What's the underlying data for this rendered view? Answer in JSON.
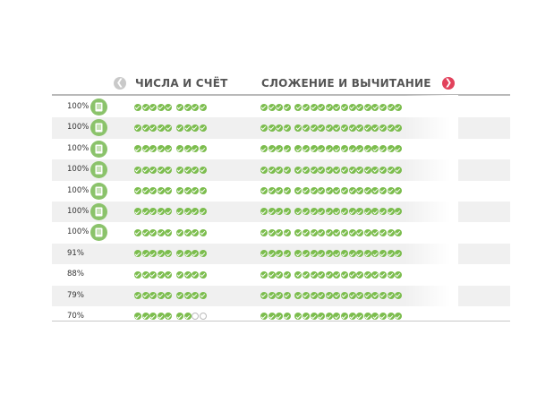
{
  "header": {
    "column1_title": "ЧИСЛА И СЧЁТ",
    "column2_title": "СЛОЖЕНИЕ И ВЫЧИТАНИЕ",
    "prev_icon": "arrow-left-icon",
    "next_icon": "arrow-right-icon"
  },
  "colors": {
    "check": "#7cbd4e",
    "book_badge": "#8bc36b",
    "next_arrow": "#e2425c",
    "prev_arrow": "#c9c9c9",
    "stripe": "#f0f0f0"
  },
  "rows": [
    {
      "percent": "100%",
      "has_badge": true,
      "col1": [
        5,
        4
      ],
      "col1_empty": 0
    },
    {
      "percent": "100%",
      "has_badge": true,
      "col1": [
        5,
        4
      ],
      "col1_empty": 0
    },
    {
      "percent": "100%",
      "has_badge": true,
      "col1": [
        5,
        4
      ],
      "col1_empty": 0
    },
    {
      "percent": "100%",
      "has_badge": true,
      "col1": [
        5,
        4
      ],
      "col1_empty": 0
    },
    {
      "percent": "100%",
      "has_badge": true,
      "col1": [
        5,
        4
      ],
      "col1_empty": 0
    },
    {
      "percent": "100%",
      "has_badge": true,
      "col1": [
        5,
        4
      ],
      "col1_empty": 0
    },
    {
      "percent": "100%",
      "has_badge": true,
      "col1": [
        5,
        4
      ],
      "col1_empty": 0
    },
    {
      "percent": "91%",
      "has_badge": false,
      "col1": [
        5,
        4
      ],
      "col1_empty": 0
    },
    {
      "percent": "88%",
      "has_badge": false,
      "col1": [
        5,
        4
      ],
      "col1_empty": 0
    },
    {
      "percent": "79%",
      "has_badge": false,
      "col1": [
        5,
        4
      ],
      "col1_empty": 0
    },
    {
      "percent": "70%",
      "has_badge": false,
      "col1": [
        5,
        4
      ],
      "col1_empty": 2
    }
  ],
  "column2_groups": [
    4,
    14
  ]
}
